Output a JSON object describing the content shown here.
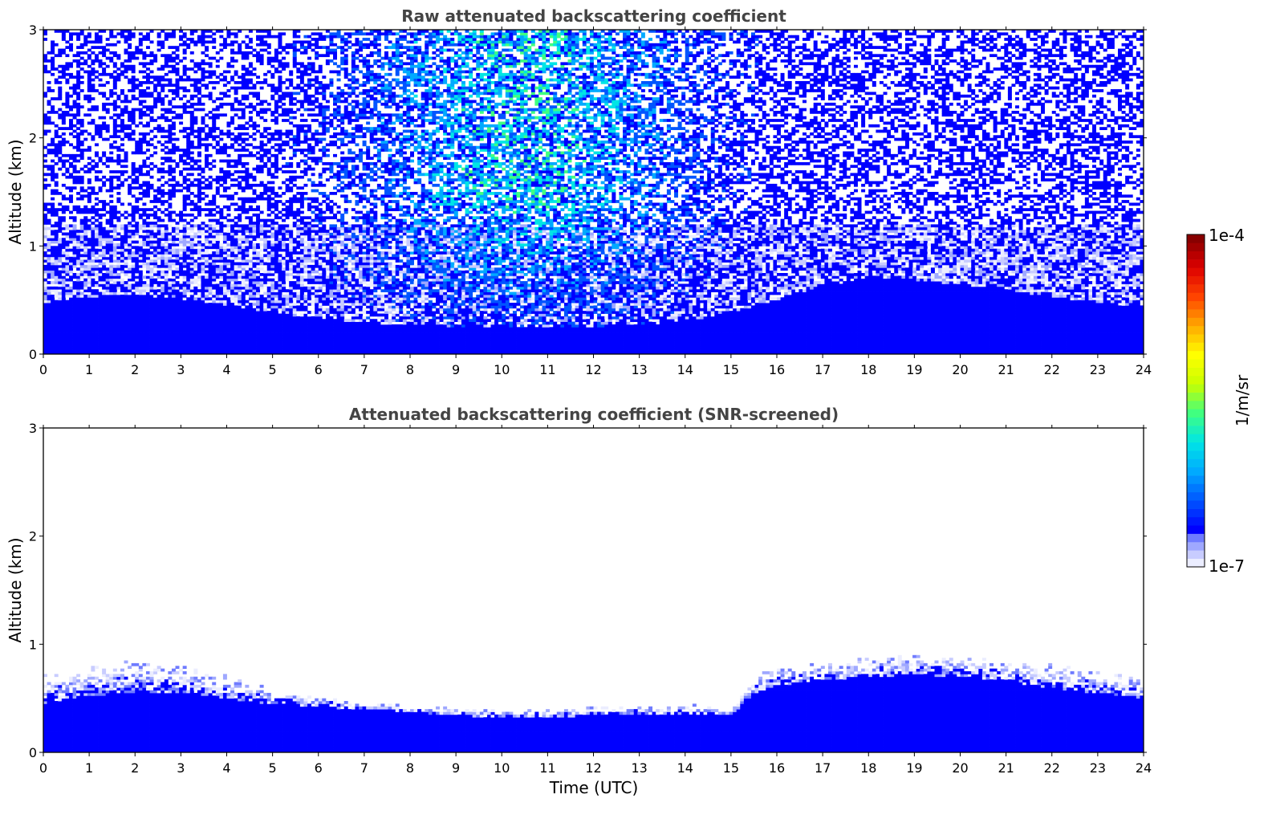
{
  "colors": {
    "background": "#ffffff",
    "title_color": "#444444",
    "colormap": [
      "#0000ff",
      "#0055ff",
      "#00aaff",
      "#00e5e5",
      "#40ff80",
      "#c8ff00",
      "#ffff00",
      "#ffaa00",
      "#ff4400",
      "#dd0000",
      "#880000"
    ],
    "low_end_colors": [
      "#ebedff",
      "#c8ccff",
      "#9fa8ff",
      "#6f7bff"
    ]
  },
  "chart_data": [
    {
      "type": "heatmap",
      "title": "Raw attenuated backscattering coefficient",
      "xlabel": "",
      "ylabel": "Altitude (km)",
      "xlim": [
        0,
        24
      ],
      "ylim": [
        0,
        3
      ],
      "xticks": [
        "0",
        "1",
        "2",
        "3",
        "4",
        "5",
        "6",
        "7",
        "8",
        "9",
        "10",
        "11",
        "12",
        "13",
        "14",
        "15",
        "16",
        "17",
        "18",
        "19",
        "20",
        "21",
        "22",
        "23",
        "24"
      ],
      "yticks": [
        "0",
        "1",
        "2",
        "3"
      ],
      "boundary_layer_top_km": {
        "time_utc": [
          0,
          1,
          2,
          3,
          4,
          5,
          6,
          7,
          8,
          9,
          10,
          11,
          12,
          13,
          14,
          15,
          16,
          17,
          18,
          19,
          20,
          21,
          22,
          23,
          24
        ],
        "altitude_km": [
          0.52,
          0.58,
          0.6,
          0.56,
          0.5,
          0.42,
          0.36,
          0.32,
          0.3,
          0.28,
          0.27,
          0.27,
          0.28,
          0.3,
          0.33,
          0.42,
          0.55,
          0.68,
          0.78,
          0.75,
          0.7,
          0.65,
          0.58,
          0.52,
          0.48
        ]
      },
      "note_values": "Noisy background; highest noise level (cyan to yellow) around 7-14 UTC above 1.5 km"
    },
    {
      "type": "heatmap",
      "title": "Attenuated backscattering coefficient (SNR-screened)",
      "xlabel": "Time (UTC)",
      "ylabel": "Altitude (km)",
      "xlim": [
        0,
        24
      ],
      "ylim": [
        0,
        3
      ],
      "xticks": [
        "0",
        "1",
        "2",
        "3",
        "4",
        "5",
        "6",
        "7",
        "8",
        "9",
        "10",
        "11",
        "12",
        "13",
        "14",
        "15",
        "16",
        "17",
        "18",
        "19",
        "20",
        "21",
        "22",
        "23",
        "24"
      ],
      "yticks": [
        "0",
        "1",
        "2",
        "3"
      ],
      "boundary_layer_top_km": {
        "time_utc": [
          0,
          1,
          2,
          3,
          4,
          5,
          6,
          7,
          8,
          9,
          10,
          11,
          12,
          13,
          14,
          15,
          15.5,
          16,
          17,
          18,
          19,
          20,
          21,
          22,
          23,
          24
        ],
        "altitude_km": [
          0.72,
          0.8,
          0.85,
          0.82,
          0.72,
          0.58,
          0.52,
          0.48,
          0.44,
          0.42,
          0.4,
          0.4,
          0.42,
          0.45,
          0.45,
          0.4,
          0.72,
          0.8,
          0.82,
          0.88,
          0.9,
          0.88,
          0.85,
          0.82,
          0.75,
          0.68
        ]
      },
      "dense_layer_top_km": {
        "time_utc": [
          0,
          1,
          2,
          3,
          4,
          5,
          6,
          7,
          8,
          9,
          10,
          11,
          12,
          13,
          14,
          15,
          15.5,
          16,
          17,
          18,
          19,
          20,
          21,
          22,
          23,
          24
        ],
        "altitude_km": [
          0.45,
          0.52,
          0.56,
          0.55,
          0.5,
          0.45,
          0.42,
          0.4,
          0.38,
          0.34,
          0.33,
          0.33,
          0.34,
          0.36,
          0.36,
          0.34,
          0.55,
          0.62,
          0.66,
          0.7,
          0.72,
          0.7,
          0.66,
          0.6,
          0.55,
          0.5
        ]
      }
    }
  ],
  "colorbar": {
    "label": "1/m/sr",
    "top_label": "1e-4",
    "bottom_label": "1e-7"
  }
}
